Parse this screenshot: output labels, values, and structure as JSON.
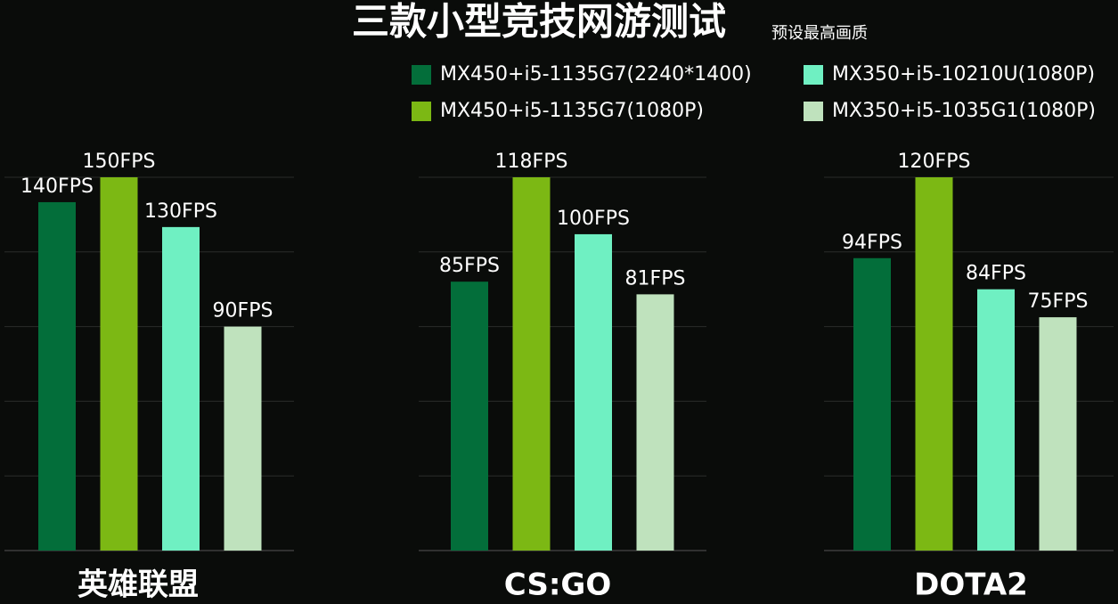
{
  "chart_data": {
    "type": "bar",
    "title": "三款小型竞技网游测试",
    "subtitle": "预设最高画质",
    "categories": [
      "英雄联盟",
      "CS:GO",
      "DOTA2"
    ],
    "ylims": [
      [
        0,
        150
      ],
      [
        0,
        118
      ],
      [
        0,
        120
      ]
    ],
    "series": [
      {
        "name": "MX450+i5-1135G7(2240*1400)",
        "color": "#036e3a",
        "values": [
          140,
          85,
          94
        ],
        "value_labels": [
          "140FPS",
          "85FPS",
          "94FPS"
        ]
      },
      {
        "name": "MX450+i5-1135G7(1080P)",
        "color": "#7cb814",
        "values": [
          150,
          118,
          120
        ],
        "value_labels": [
          "150FPS",
          "118FPS",
          "120FPS"
        ]
      },
      {
        "name": "MX350+i5-10210U(1080P)",
        "color": "#6ff0c2",
        "values": [
          130,
          100,
          84
        ],
        "value_labels": [
          "130FPS",
          "100FPS",
          "84FPS"
        ]
      },
      {
        "name": "MX350+i5-1035G1(1080P)",
        "color": "#bfe2bd",
        "values": [
          90,
          81,
          75
        ],
        "value_labels": [
          "90FPS",
          "81FPS",
          "75FPS"
        ]
      }
    ]
  }
}
